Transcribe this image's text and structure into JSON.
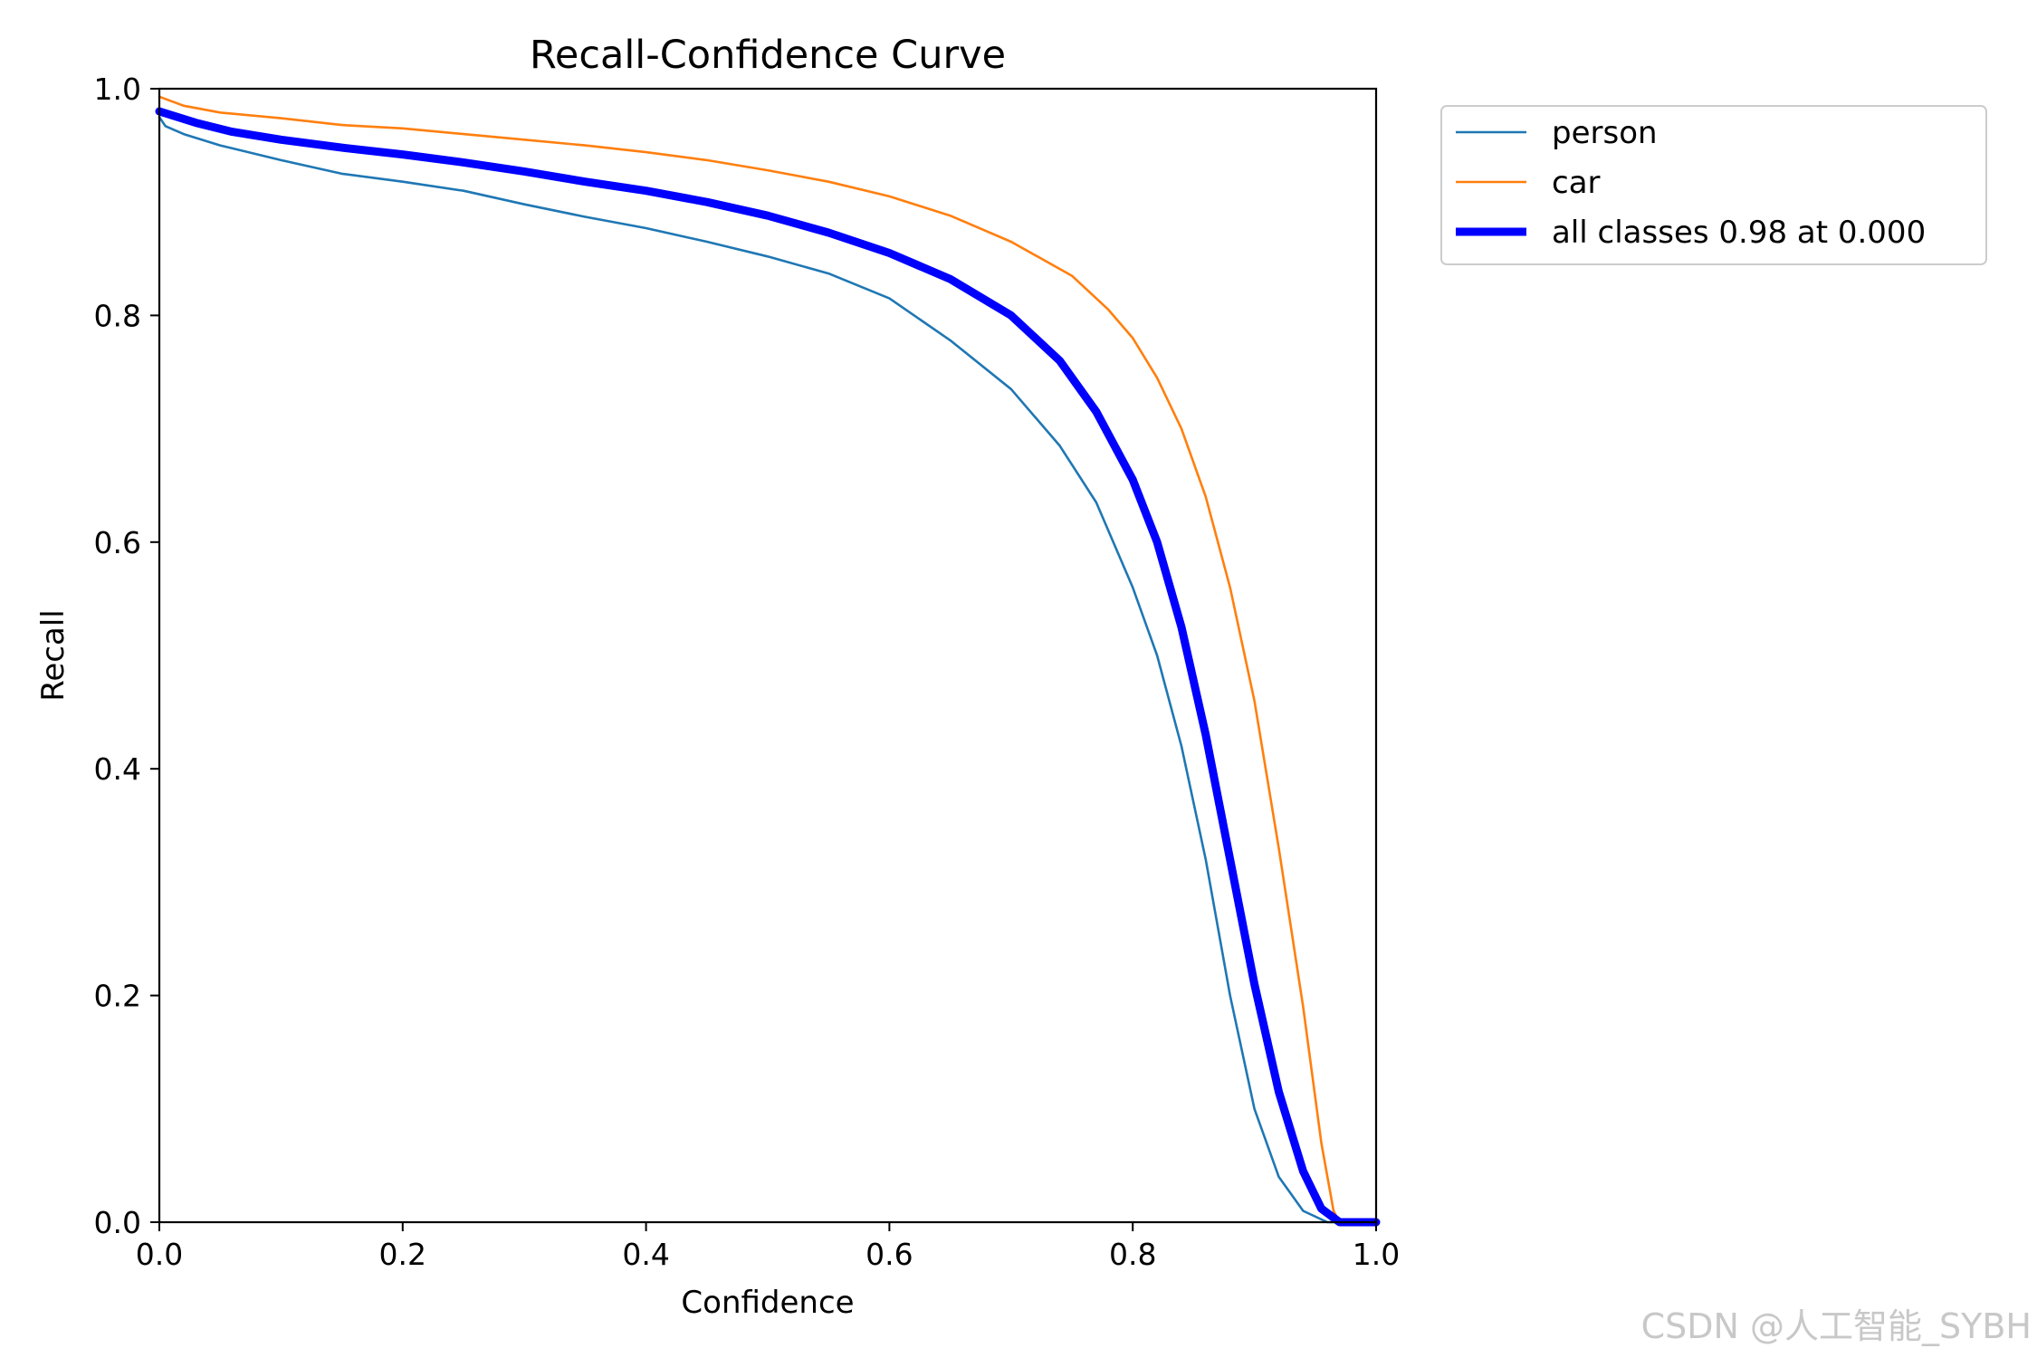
{
  "chart_data": {
    "type": "line",
    "title": "Recall-Confidence Curve",
    "xlabel": "Confidence",
    "ylabel": "Recall",
    "xlim": [
      0,
      1
    ],
    "ylim": [
      0,
      1
    ],
    "xticks": [
      "0.0",
      "0.2",
      "0.4",
      "0.6",
      "0.8",
      "1.0"
    ],
    "yticks": [
      "0.0",
      "0.2",
      "0.4",
      "0.6",
      "0.8",
      "1.0"
    ],
    "grid": false,
    "legend_position": "outside upper right",
    "series": [
      {
        "name": "person",
        "color": "#1f77b4",
        "points": [
          [
            0.0,
            0.975
          ],
          [
            0.005,
            0.967
          ],
          [
            0.02,
            0.96
          ],
          [
            0.05,
            0.95
          ],
          [
            0.1,
            0.937
          ],
          [
            0.15,
            0.925
          ],
          [
            0.2,
            0.918
          ],
          [
            0.25,
            0.91
          ],
          [
            0.3,
            0.898
          ],
          [
            0.35,
            0.887
          ],
          [
            0.4,
            0.877
          ],
          [
            0.45,
            0.865
          ],
          [
            0.5,
            0.852
          ],
          [
            0.55,
            0.837
          ],
          [
            0.6,
            0.815
          ],
          [
            0.65,
            0.778
          ],
          [
            0.7,
            0.735
          ],
          [
            0.74,
            0.685
          ],
          [
            0.77,
            0.635
          ],
          [
            0.8,
            0.56
          ],
          [
            0.82,
            0.5
          ],
          [
            0.84,
            0.42
          ],
          [
            0.86,
            0.32
          ],
          [
            0.88,
            0.2
          ],
          [
            0.9,
            0.1
          ],
          [
            0.92,
            0.04
          ],
          [
            0.94,
            0.01
          ],
          [
            0.96,
            0.0
          ],
          [
            1.0,
            0.0
          ]
        ]
      },
      {
        "name": "car",
        "color": "#ff7f0e",
        "points": [
          [
            0.0,
            0.993
          ],
          [
            0.02,
            0.985
          ],
          [
            0.05,
            0.979
          ],
          [
            0.1,
            0.974
          ],
          [
            0.15,
            0.968
          ],
          [
            0.2,
            0.965
          ],
          [
            0.25,
            0.96
          ],
          [
            0.3,
            0.955
          ],
          [
            0.35,
            0.95
          ],
          [
            0.4,
            0.944
          ],
          [
            0.45,
            0.937
          ],
          [
            0.5,
            0.928
          ],
          [
            0.55,
            0.918
          ],
          [
            0.6,
            0.905
          ],
          [
            0.65,
            0.888
          ],
          [
            0.7,
            0.865
          ],
          [
            0.75,
            0.835
          ],
          [
            0.78,
            0.805
          ],
          [
            0.8,
            0.78
          ],
          [
            0.82,
            0.745
          ],
          [
            0.84,
            0.7
          ],
          [
            0.86,
            0.64
          ],
          [
            0.88,
            0.56
          ],
          [
            0.9,
            0.46
          ],
          [
            0.92,
            0.33
          ],
          [
            0.94,
            0.19
          ],
          [
            0.955,
            0.07
          ],
          [
            0.965,
            0.01
          ],
          [
            0.97,
            0.0
          ],
          [
            1.0,
            0.0
          ]
        ]
      },
      {
        "name": "all classes 0.98 at 0.000",
        "color": "#0000ff",
        "thick": true,
        "points": [
          [
            0.0,
            0.98
          ],
          [
            0.03,
            0.97
          ],
          [
            0.06,
            0.962
          ],
          [
            0.1,
            0.955
          ],
          [
            0.15,
            0.948
          ],
          [
            0.2,
            0.942
          ],
          [
            0.25,
            0.935
          ],
          [
            0.3,
            0.927
          ],
          [
            0.35,
            0.918
          ],
          [
            0.4,
            0.91
          ],
          [
            0.45,
            0.9
          ],
          [
            0.5,
            0.888
          ],
          [
            0.55,
            0.873
          ],
          [
            0.6,
            0.855
          ],
          [
            0.65,
            0.832
          ],
          [
            0.7,
            0.8
          ],
          [
            0.74,
            0.76
          ],
          [
            0.77,
            0.715
          ],
          [
            0.8,
            0.655
          ],
          [
            0.82,
            0.6
          ],
          [
            0.84,
            0.525
          ],
          [
            0.86,
            0.43
          ],
          [
            0.88,
            0.32
          ],
          [
            0.9,
            0.21
          ],
          [
            0.92,
            0.115
          ],
          [
            0.94,
            0.045
          ],
          [
            0.955,
            0.012
          ],
          [
            0.97,
            0.0
          ],
          [
            1.0,
            0.0
          ]
        ]
      }
    ]
  },
  "watermark": "CSDN @人工智能_SYBH"
}
